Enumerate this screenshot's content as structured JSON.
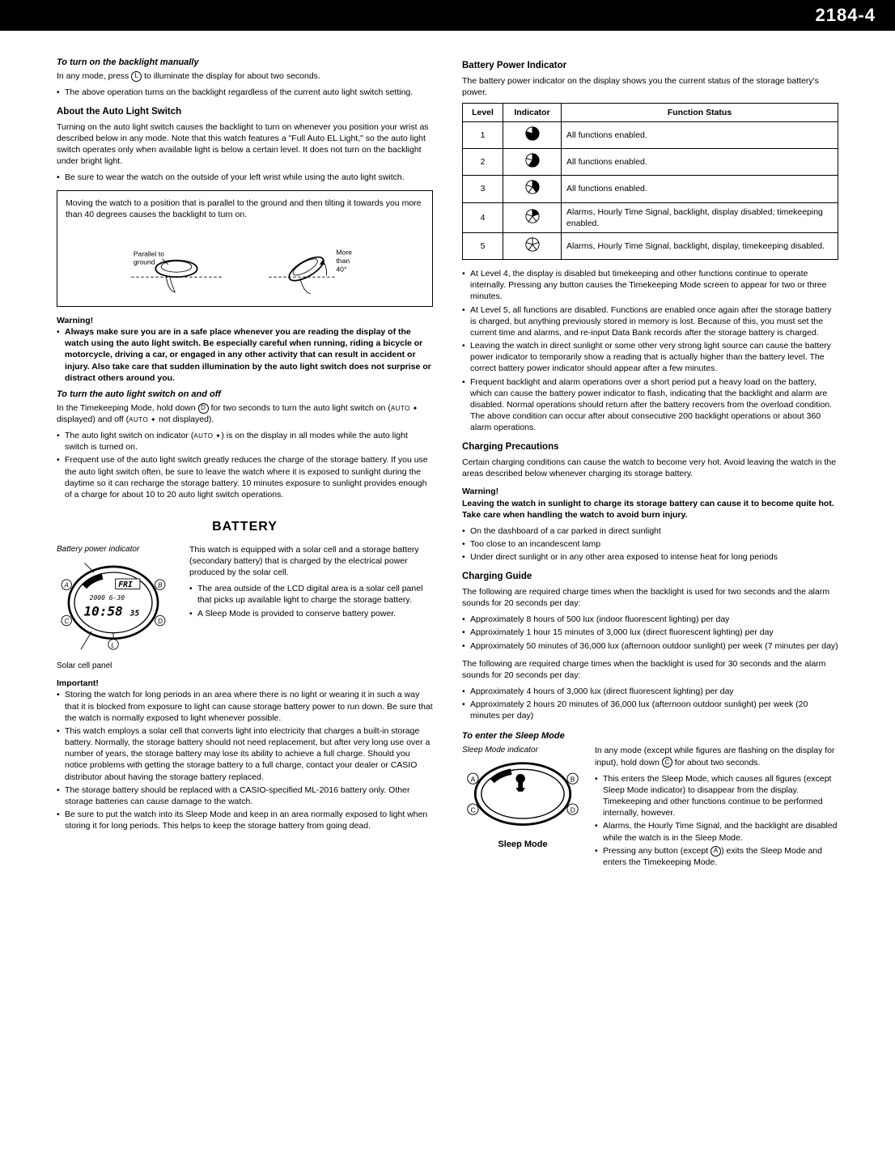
{
  "header": {
    "page_number": "2184-4"
  },
  "left_col": {
    "backlight_manual": {
      "title": "To turn on the backlight manually",
      "line1_pre": "In any mode, press ",
      "line1_btn": "L",
      "line1_post": " to illuminate the display for about two seconds.",
      "bullet1": "The above operation turns on the backlight regardless of the current auto light switch setting."
    },
    "auto_light": {
      "title": "About the Auto Light Switch",
      "intro": "Turning on the auto light switch causes the backlight to turn on whenever you position your wrist as described below in any mode. Note that this watch features a \"Full Auto EL Light,\" so the auto light switch operates only when available light is below a certain level. It does not turn on the backlight under bright light.",
      "bullet1": "Be sure to wear the watch on the outside of your left wrist while using the auto light switch.",
      "box_text": "Moving the watch to a position that is parallel to the ground and then tilting it towards you more than 40 degrees causes the backlight to turn on.",
      "diag_label1": "Parallel to ground",
      "diag_label2a": "More",
      "diag_label2b": "than",
      "diag_label2c": "40°"
    },
    "warning": {
      "label": "Warning!",
      "bullet": "Always make sure you are in a safe place whenever you are reading the display of the watch using the auto light switch. Be especially careful when running, riding a bicycle or motorcycle, driving a car, or engaged in any other activity that can result in accident or injury. Also take care that sudden illumination by the auto light switch does not surprise or distract others around you."
    },
    "auto_toggle": {
      "title": "To turn the auto light switch on and off",
      "line1_pre": "In the Timekeeping Mode, hold down ",
      "line1_btn": "D",
      "line1_post": " for two seconds to turn the auto light switch on (",
      "line1_auto1": "AUTO ✦",
      "line1_mid": " displayed) and off (",
      "line1_auto2": "AUTO ✦",
      "line1_end": " not displayed).",
      "bullet1_pre": "The auto light switch on indicator (",
      "bullet1_auto": "AUTO ✦",
      "bullet1_post": ") is on the display in all modes while the auto light switch is turned on.",
      "bullet2": "Frequent use of the auto light switch greatly reduces the charge of the storage battery. If you use the auto light switch often, be sure to leave the watch where it is exposed to sunlight during the daytime so it can recharge the storage battery. 10 minutes exposure to sunlight provides enough of a charge for about 10 to 20 auto light switch operations."
    },
    "battery": {
      "heading": "BATTERY",
      "left_label": "Battery power indicator",
      "solar_label": "Solar cell panel",
      "intro": "This watch is equipped with a solar cell and a storage battery (secondary battery) that is charged by the electrical power produced by the solar cell.",
      "bullet1": "The area outside of the LCD digital area is a solar cell panel that picks up available light to charge the storage battery.",
      "bullet2": "A Sleep Mode is provided to conserve battery power.",
      "digital_day": "FRI",
      "digital_date": "2000  6-30",
      "digital_time": "10:58 35",
      "btns": {
        "A": "A",
        "B": "B",
        "C": "C",
        "D": "D",
        "L": "L"
      }
    },
    "important": {
      "label": "Important!",
      "b1": "Storing the watch for long periods in an area where there is no light or wearing it in such a way that it is blocked from exposure to light can cause storage battery power to run down. Be sure that the watch is normally exposed to light whenever possible.",
      "b2": "This watch employs a solar cell that converts light into electricity that charges a built-in storage battery. Normally, the storage battery should not need replacement, but after very long use over a number of years, the storage battery may lose its ability to achieve a full charge. Should you notice problems with getting the storage battery to a full charge, contact your dealer or CASIO distributor about having the storage battery replaced.",
      "b3": "The storage battery should be replaced with a CASIO-specified ML-2016 battery only. Other storage batteries can cause damage to the watch.",
      "b4": "Be sure to put the watch into its Sleep Mode and keep in an area normally exposed to light when storing it for long periods. This helps to keep the storage battery from going dead."
    }
  },
  "right_col": {
    "bpi": {
      "title": "Battery Power Indicator",
      "intro": "The battery power indicator on the display shows you the current status of the storage battery's power.",
      "headers": {
        "level": "Level",
        "indicator": "Indicator",
        "status": "Function Status"
      },
      "rows": [
        {
          "level": "1",
          "fill": 4,
          "status": "All functions enabled."
        },
        {
          "level": "2",
          "fill": 3,
          "status": "All functions enabled."
        },
        {
          "level": "3",
          "fill": 2,
          "status": "All functions enabled."
        },
        {
          "level": "4",
          "fill": 1,
          "status": "Alarms, Hourly Time Signal, backlight, display disabled; timekeeping enabled."
        },
        {
          "level": "5",
          "fill": 0,
          "status": "Alarms, Hourly Time Signal, backlight, display, timekeeping disabled."
        }
      ],
      "b1": "At Level 4, the display is disabled but timekeeping and other functions continue to operate internally. Pressing any button causes the Timekeeping Mode screen to appear for two or three minutes.",
      "b2": "At Level 5, all functions are disabled. Functions are enabled once again after the storage battery is charged, but anything previously stored in memory is lost. Because of this, you must set the current time and alarms, and re-input Data Bank records after the storage battery is charged.",
      "b3": "Leaving the watch in direct sunlight or some other very strong light source can cause the battery power indicator to temporarily show a reading that is actually higher than the battery level. The correct battery power indicator should appear after a few minutes.",
      "b4": "Frequent backlight and alarm operations over a short period put a heavy load on the battery, which can cause the battery power indicator to flash, indicating that the backlight and alarm are disabled. Normal operations should return after the battery recovers from the overload condition. The above condition can occur after about consecutive 200 backlight operations or about 360 alarm operations."
    },
    "charging_prec": {
      "title": "Charging Precautions",
      "intro": "Certain charging conditions can cause the watch to become very hot. Avoid leaving the watch in the areas described below whenever charging its storage battery.",
      "warn_label": "Warning!",
      "warn_bold": "Leaving the watch in sunlight to charge its storage battery can cause it to become quite hot. Take care when handling the watch to avoid burn injury.",
      "b1": "On the dashboard of a car parked in direct sunlight",
      "b2": "Too close to an incandescent lamp",
      "b3": "Under direct sunlight or in any other area exposed to intense heat for long periods"
    },
    "charging_guide": {
      "title": "Charging Guide",
      "intro1": "The following are required charge times when the backlight is used for two seconds and the alarm sounds for 20 seconds per day:",
      "g1b1": "Approximately 8 hours of 500 lux (indoor fluorescent lighting) per day",
      "g1b2": "Approximately 1 hour 15 minutes of 3,000 lux (direct fluorescent lighting) per day",
      "g1b3": "Approximately 50 minutes of 36,000 lux (afternoon outdoor sunlight) per week (7 minutes per day)",
      "intro2": "The following are required charge times when the backlight is used for 30 seconds and the alarm sounds for 20 seconds per day:",
      "g2b1": "Approximately 4 hours of 3,000 lux (direct fluorescent lighting) per day",
      "g2b2": "Approximately 2 hours 20 minutes of 36,000 lux (afternoon outdoor sunlight) per week (20 minutes per day)"
    },
    "sleep": {
      "title": "To enter the Sleep Mode",
      "left_label": "Sleep Mode indicator",
      "caption": "Sleep Mode",
      "intro_pre": "In any mode (except while figures are flashing on the display for input), hold down ",
      "intro_btn": "C",
      "intro_post": " for about two seconds.",
      "b1": "This enters the Sleep Mode, which causes all figures (except Sleep Mode indicator) to disappear from the display. Timekeeping and other functions continue to be performed internally, however.",
      "b2": "Alarms, the Hourly Time Signal, and the backlight are disabled while the watch is in the Sleep Mode.",
      "b3_pre": "Pressing any button (except ",
      "b3_btn": "A",
      "b3_post": ") exits the Sleep Mode and enters the Timekeeping Mode.",
      "btns": {
        "A": "A",
        "B": "B",
        "C": "C",
        "D": "D"
      }
    }
  },
  "style": {
    "page_bg": "#ffffff",
    "text_color": "#000000",
    "header_bg": "#000000",
    "border_color": "#000000"
  }
}
